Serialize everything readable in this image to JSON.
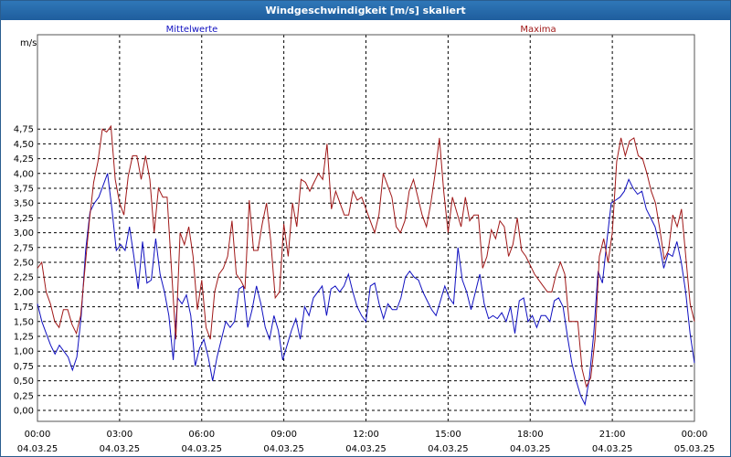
{
  "window": {
    "title": "Windgeschwindigkeit [m/s] skaliert"
  },
  "chart_data": {
    "type": "line",
    "unit_label": "m/s",
    "ylim": [
      0,
      5
    ],
    "y_ticks": [
      "0,00",
      "0,25",
      "0,50",
      "0,75",
      "1,00",
      "1,25",
      "1,50",
      "1,75",
      "2,00",
      "2,25",
      "2,50",
      "2,75",
      "3,00",
      "3,25",
      "3,50",
      "3,75",
      "4,00",
      "4,25",
      "4,50",
      "4,75"
    ],
    "x_range_hours": [
      0,
      24
    ],
    "x_ticks": [
      {
        "time": "00:00",
        "date": "04.03.25"
      },
      {
        "time": "03:00",
        "date": "04.03.25"
      },
      {
        "time": "06:00",
        "date": "04.03.25"
      },
      {
        "time": "09:00",
        "date": "04.03.25"
      },
      {
        "time": "12:00",
        "date": "04.03.25"
      },
      {
        "time": "15:00",
        "date": "04.03.25"
      },
      {
        "time": "18:00",
        "date": "04.03.25"
      },
      {
        "time": "21:00",
        "date": "04.03.25"
      },
      {
        "time": "00:00",
        "date": "05.03.25"
      }
    ],
    "grid": true,
    "legend_position": "top",
    "series": [
      {
        "name": "Mittelwerte",
        "color": "#1010c0",
        "values": [
          1.8,
          1.5,
          1.3,
          1.1,
          0.95,
          1.1,
          1.0,
          0.9,
          0.68,
          0.9,
          1.6,
          2.7,
          3.35,
          3.5,
          3.6,
          3.8,
          4.0,
          3.4,
          2.7,
          2.8,
          2.7,
          3.1,
          2.6,
          2.05,
          2.85,
          2.15,
          2.2,
          2.9,
          2.3,
          2.0,
          1.6,
          0.85,
          1.9,
          1.8,
          1.95,
          1.6,
          0.75,
          1.05,
          1.2,
          0.9,
          0.5,
          0.9,
          1.2,
          1.5,
          1.4,
          1.5,
          2.05,
          2.1,
          1.4,
          1.7,
          2.1,
          1.8,
          1.4,
          1.2,
          1.6,
          1.35,
          0.85,
          1.1,
          1.35,
          1.55,
          1.2,
          1.75,
          1.6,
          1.9,
          2.0,
          2.1,
          1.6,
          2.05,
          2.1,
          2.0,
          2.1,
          2.3,
          2.0,
          1.75,
          1.6,
          1.5,
          2.1,
          2.15,
          1.8,
          1.55,
          1.8,
          1.7,
          1.7,
          1.9,
          2.25,
          2.35,
          2.25,
          2.2,
          2.0,
          1.85,
          1.7,
          1.6,
          1.85,
          2.1,
          1.9,
          1.8,
          2.75,
          2.2,
          2.0,
          1.7,
          2.0,
          2.3,
          1.8,
          1.55,
          1.6,
          1.55,
          1.65,
          1.5,
          1.75,
          1.3,
          1.85,
          1.9,
          1.5,
          1.6,
          1.4,
          1.6,
          1.6,
          1.5,
          1.85,
          1.9,
          1.75,
          1.25,
          0.8,
          0.5,
          0.25,
          0.1,
          0.55,
          1.3,
          2.35,
          2.15,
          2.85,
          3.5,
          3.55,
          3.6,
          3.7,
          3.9,
          3.75,
          3.65,
          3.7,
          3.4,
          3.25,
          3.1,
          2.8,
          2.4,
          2.65,
          2.6,
          2.85,
          2.5,
          2.0,
          1.3,
          0.8
        ]
      },
      {
        "name": "Maxima",
        "color": "#a01818",
        "values": [
          2.4,
          2.5,
          2.0,
          1.8,
          1.5,
          1.4,
          1.7,
          1.7,
          1.45,
          1.3,
          1.6,
          2.4,
          3.2,
          3.85,
          4.2,
          4.75,
          4.7,
          4.8,
          3.9,
          3.5,
          3.3,
          3.95,
          4.3,
          4.3,
          3.9,
          4.3,
          3.9,
          3.0,
          3.75,
          3.6,
          3.6,
          2.4,
          1.2,
          3.0,
          2.8,
          3.1,
          2.6,
          1.7,
          2.2,
          1.4,
          1.2,
          2.0,
          2.3,
          2.4,
          2.6,
          3.2,
          2.3,
          2.2,
          2.05,
          3.55,
          2.7,
          2.7,
          3.15,
          3.5,
          2.85,
          1.9,
          2.0,
          3.15,
          2.6,
          3.5,
          3.1,
          3.9,
          3.85,
          3.7,
          3.85,
          4.0,
          3.9,
          4.5,
          3.4,
          3.7,
          3.5,
          3.3,
          3.3,
          3.7,
          3.55,
          3.6,
          3.4,
          3.2,
          3.0,
          3.3,
          4.0,
          3.8,
          3.6,
          3.1,
          3.0,
          3.2,
          3.7,
          3.9,
          3.6,
          3.3,
          3.1,
          3.5,
          4.0,
          4.6,
          3.7,
          3.0,
          3.6,
          3.35,
          3.1,
          3.6,
          3.2,
          3.3,
          3.3,
          2.4,
          2.6,
          3.05,
          2.9,
          3.2,
          3.1,
          2.6,
          2.8,
          3.25,
          2.7,
          2.6,
          2.45,
          2.3,
          2.2,
          2.1,
          2.0,
          2.0,
          2.3,
          2.5,
          2.3,
          1.5,
          1.5,
          1.5,
          0.7,
          0.4,
          0.55,
          1.2,
          2.6,
          2.9,
          2.5,
          3.0,
          4.2,
          4.6,
          4.3,
          4.55,
          4.6,
          4.3,
          4.25,
          4.0,
          3.7,
          3.5,
          3.05,
          2.55,
          2.7,
          3.3,
          3.1,
          3.4,
          2.6,
          1.8,
          1.5
        ]
      }
    ]
  }
}
